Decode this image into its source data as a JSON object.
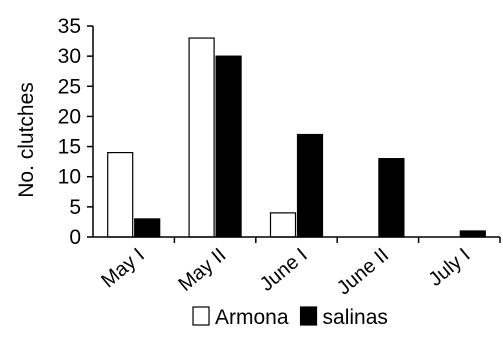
{
  "chart_data": {
    "type": "bar",
    "ylabel": "No. clutches",
    "ylim": [
      0,
      35
    ],
    "yticks": [
      0,
      5,
      10,
      15,
      20,
      25,
      30,
      35
    ],
    "categories": [
      "May I",
      "May II",
      "June I",
      "June II",
      "July I"
    ],
    "series": [
      {
        "name": "Armona",
        "values": [
          14,
          33,
          4,
          0,
          0
        ],
        "fill": "#ffffff",
        "stroke": "#000000"
      },
      {
        "name": "salinas",
        "values": [
          3,
          30,
          17,
          13,
          1
        ],
        "fill": "#000000",
        "stroke": "#000000"
      }
    ],
    "legend_position": "bottom-center",
    "grid": false
  }
}
